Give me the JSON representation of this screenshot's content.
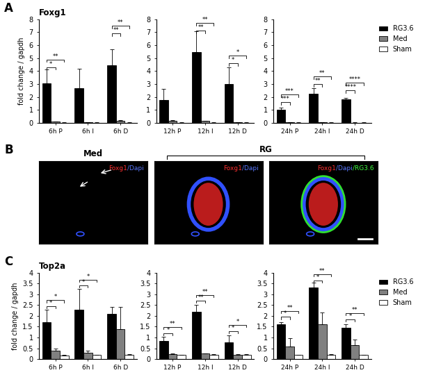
{
  "chart_data": [
    {
      "type": "bar",
      "panel": "A",
      "title": "Foxg1",
      "ylabel": "fold change / gapdh",
      "categories": [
        "6h P",
        "6h I",
        "6h D"
      ],
      "series": [
        {
          "name": "RG3.6",
          "color": "#000000",
          "values": [
            3.05,
            2.7,
            4.45
          ],
          "errors": [
            1.05,
            1.5,
            1.25
          ]
        },
        {
          "name": "Med",
          "color": "#808080",
          "values": [
            0.1,
            0.05,
            0.15
          ],
          "errors": [
            0.03,
            0.02,
            0.08
          ]
        },
        {
          "name": "Sham",
          "color": "#ffffff",
          "values": [
            0.02,
            0.02,
            0.02
          ],
          "errors": [
            0.01,
            0.01,
            0.01
          ]
        }
      ],
      "ylim": [
        0,
        8
      ],
      "yticks": [
        0,
        1,
        2,
        3,
        4,
        5,
        6,
        7,
        8
      ],
      "brackets": [
        {
          "category": "6h P",
          "to": "Med",
          "y": 4.3,
          "label": "*"
        },
        {
          "category": "6h P",
          "to": "Sham",
          "y": 4.9,
          "label": "**"
        },
        {
          "category": "6h D",
          "to": "Med",
          "y": 6.9,
          "label": "**"
        },
        {
          "category": "6h D",
          "to": "Sham",
          "y": 7.5,
          "label": "**"
        }
      ]
    },
    {
      "type": "bar",
      "categories": [
        "12h P",
        "12h I",
        "12h D"
      ],
      "series": [
        {
          "name": "RG3.6",
          "color": "#000000",
          "values": [
            1.75,
            5.45,
            3.0
          ],
          "errors": [
            0.9,
            1.6,
            1.3
          ]
        },
        {
          "name": "Med",
          "color": "#808080",
          "values": [
            0.15,
            0.15,
            0.05
          ],
          "errors": [
            0.05,
            0.03,
            0.02
          ]
        },
        {
          "name": "Sham",
          "color": "#ffffff",
          "values": [
            0.02,
            0.02,
            0.02
          ],
          "errors": [
            0.01,
            0.01,
            0.01
          ]
        }
      ],
      "ylim": [
        0,
        8
      ],
      "yticks": [
        0,
        1,
        2,
        3,
        4,
        5,
        6,
        7,
        8
      ],
      "brackets": [
        {
          "category": "12h I",
          "to": "Med",
          "y": 7.1,
          "label": "**"
        },
        {
          "category": "12h I",
          "to": "Sham",
          "y": 7.7,
          "label": "**"
        },
        {
          "category": "12h D",
          "to": "Med",
          "y": 4.6,
          "label": "*"
        },
        {
          "category": "12h D",
          "to": "Sham",
          "y": 5.2,
          "label": "*"
        }
      ]
    },
    {
      "type": "bar",
      "legend": "upper right",
      "categories": [
        "24h P",
        "24h I",
        "24h D"
      ],
      "series": [
        {
          "name": "RG3.6",
          "color": "#000000",
          "values": [
            1.0,
            2.25,
            1.8
          ],
          "errors": [
            0.15,
            0.45,
            0.15
          ]
        },
        {
          "name": "Med",
          "color": "#808080",
          "values": [
            0.05,
            0.05,
            0.02
          ],
          "errors": [
            0.02,
            0.02,
            0.01
          ]
        },
        {
          "name": "Sham",
          "color": "#ffffff",
          "values": [
            0.02,
            0.02,
            0.02
          ],
          "errors": [
            0.01,
            0.01,
            0.01
          ]
        }
      ],
      "ylim": [
        0,
        8
      ],
      "yticks": [
        0,
        1,
        2,
        3,
        4,
        5,
        6,
        7,
        8
      ],
      "brackets": [
        {
          "category": "24h P",
          "to": "Med",
          "y": 1.6,
          "label": "***"
        },
        {
          "category": "24h P",
          "to": "Sham",
          "y": 2.2,
          "label": "***"
        },
        {
          "category": "24h I",
          "to": "Med",
          "y": 3.0,
          "label": "**"
        },
        {
          "category": "24h I",
          "to": "Sham",
          "y": 3.6,
          "label": "**"
        },
        {
          "category": "24h D",
          "to": "Med",
          "y": 2.5,
          "label": "****"
        },
        {
          "category": "24h D",
          "to": "Sham",
          "y": 3.1,
          "label": "****"
        }
      ]
    },
    {
      "type": "bar",
      "panel": "C",
      "title": "Top2a",
      "ylabel": "fold change / gapdh",
      "categories": [
        "6h P",
        "6h I",
        "6h D"
      ],
      "series": [
        {
          "name": "RG3.6",
          "color": "#000000",
          "values": [
            1.7,
            2.3,
            2.1
          ],
          "errors": [
            0.6,
            0.95,
            0.3
          ]
        },
        {
          "name": "Med",
          "color": "#808080",
          "values": [
            0.38,
            0.3,
            1.4
          ],
          "errors": [
            0.12,
            0.08,
            1.0
          ]
        },
        {
          "name": "Sham",
          "color": "#ffffff",
          "values": [
            0.17,
            0.18,
            0.2
          ],
          "errors": [
            0.02,
            0.02,
            0.02
          ]
        }
      ],
      "ylim": [
        0,
        4
      ],
      "yticks": [
        0,
        0.5,
        1,
        1.5,
        2,
        2.5,
        3,
        3.5,
        4
      ],
      "brackets": [
        {
          "category": "6h P",
          "to": "Med",
          "y": 2.45,
          "label": "*"
        },
        {
          "category": "6h P",
          "to": "Sham",
          "y": 2.72,
          "label": "*"
        },
        {
          "category": "6h I",
          "to": "Med",
          "y": 3.4,
          "label": "*"
        },
        {
          "category": "6h I",
          "to": "Sham",
          "y": 3.67,
          "label": "*"
        }
      ]
    },
    {
      "type": "bar",
      "categories": [
        "12h P",
        "12h I",
        "12h D"
      ],
      "series": [
        {
          "name": "RG3.6",
          "color": "#000000",
          "values": [
            0.85,
            2.2,
            0.78
          ],
          "errors": [
            0.18,
            0.3,
            0.3
          ]
        },
        {
          "name": "Med",
          "color": "#808080",
          "values": [
            0.22,
            0.25,
            0.18
          ],
          "errors": [
            0.03,
            0.02,
            0.05
          ]
        },
        {
          "name": "Sham",
          "color": "#ffffff",
          "values": [
            0.18,
            0.2,
            0.2
          ],
          "errors": [
            0.02,
            0.02,
            0.02
          ]
        }
      ],
      "ylim": [
        0,
        4
      ],
      "yticks": [
        0,
        0.5,
        1,
        1.5,
        2,
        2.5,
        3,
        3.5,
        4
      ],
      "brackets": [
        {
          "category": "12h P",
          "to": "Med",
          "y": 1.2,
          "label": "*"
        },
        {
          "category": "12h P",
          "to": "Sham",
          "y": 1.47,
          "label": "**"
        },
        {
          "category": "12h I",
          "to": "Med",
          "y": 2.7,
          "label": "**"
        },
        {
          "category": "12h I",
          "to": "Sham",
          "y": 2.97,
          "label": "**"
        },
        {
          "category": "12h D",
          "to": "Med",
          "y": 1.3,
          "label": "*"
        },
        {
          "category": "12h D",
          "to": "Sham",
          "y": 1.57,
          "label": "*"
        }
      ]
    },
    {
      "type": "bar",
      "legend": "upper right",
      "categories": [
        "24h P",
        "24h I",
        "24h D"
      ],
      "series": [
        {
          "name": "RG3.6",
          "color": "#000000",
          "values": [
            1.6,
            3.3,
            1.45
          ],
          "errors": [
            0.1,
            0.25,
            0.15
          ]
        },
        {
          "name": "Med",
          "color": "#808080",
          "values": [
            0.58,
            1.6,
            0.65
          ],
          "errors": [
            0.4,
            0.55,
            0.25
          ]
        },
        {
          "name": "Sham",
          "color": "#ffffff",
          "values": [
            0.18,
            0.2,
            0.18
          ],
          "errors": [
            0.02,
            0.02,
            0.02
          ]
        }
      ],
      "ylim": [
        0,
        4
      ],
      "yticks": [
        0,
        0.5,
        1,
        1.5,
        2,
        2.5,
        3,
        3.5,
        4
      ],
      "brackets": [
        {
          "category": "24h P",
          "to": "Med",
          "y": 1.95,
          "label": "*"
        },
        {
          "category": "24h P",
          "to": "Sham",
          "y": 2.22,
          "label": "**"
        },
        {
          "category": "24h I",
          "to": "Med",
          "y": 3.65,
          "label": "*"
        },
        {
          "category": "24h I",
          "to": "Sham",
          "y": 3.92,
          "label": "**"
        },
        {
          "category": "24h D",
          "to": "Med",
          "y": 1.85,
          "label": "*"
        },
        {
          "category": "24h D",
          "to": "Sham",
          "y": 2.12,
          "label": "**"
        }
      ]
    }
  ],
  "images": {
    "panel": "B",
    "items": [
      {
        "label": [
          {
            "text": "Foxg1",
            "color": "#ff3030"
          },
          {
            "text": "/Dapi",
            "color": "#5a78ff"
          }
        ]
      },
      {
        "label": [
          {
            "text": "Foxg1",
            "color": "#ff3030"
          },
          {
            "text": "/Dapi",
            "color": "#5a78ff"
          }
        ]
      },
      {
        "label": [
          {
            "text": "Foxg1",
            "color": "#ff3030"
          },
          {
            "text": "/Dapi",
            "color": "#5a78ff"
          },
          {
            "text": "/RG3.6",
            "color": "#40ff40"
          }
        ]
      }
    ],
    "groups": [
      {
        "title": "Med",
        "images": [
          0
        ]
      },
      {
        "title": "RG",
        "images": [
          1,
          2
        ]
      }
    ]
  }
}
